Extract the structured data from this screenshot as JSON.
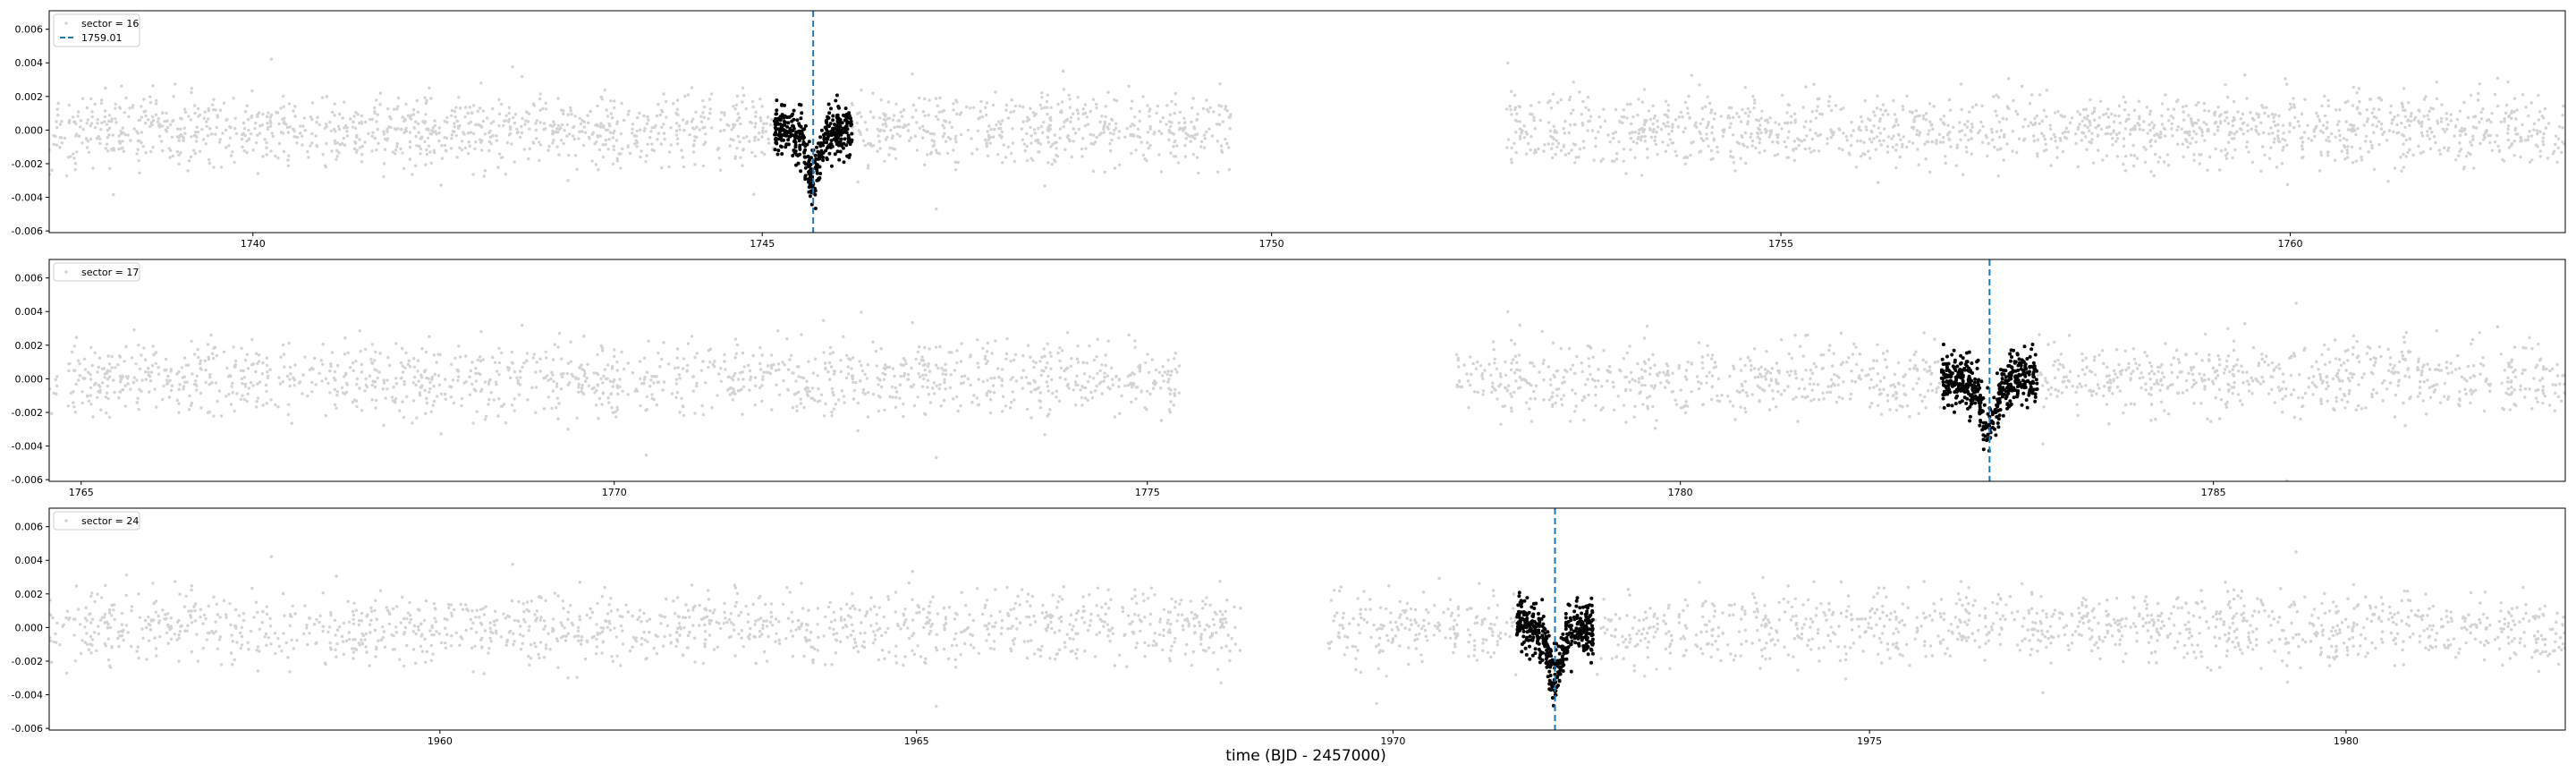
{
  "chart_data": [
    {
      "type": "scatter",
      "sector_label": "sector = 16",
      "transit_label": "1759.01",
      "show_transit_legend": true,
      "transit_x": 1745.5,
      "xlim": [
        1738.0,
        1762.7
      ],
      "ylim": [
        -0.0061,
        0.0071
      ],
      "xticks": [
        1740,
        1745,
        1750,
        1755,
        1760
      ],
      "yticks": [
        "0.006",
        "0.004",
        "0.002",
        "0.000",
        "-0.002",
        "-0.004",
        "-0.006"
      ],
      "gaps": [
        [
          1749.6,
          1752.3
        ]
      ],
      "transits": [
        {
          "start": 1745.12,
          "end": 1745.88,
          "dip_center": 1745.5,
          "dip_half_width": 0.12,
          "dip_depth": 0.0027
        }
      ]
    },
    {
      "type": "scatter",
      "sector_label": "sector = 17",
      "transit_label": "1759.01",
      "show_transit_legend": false,
      "transit_x": 1782.9,
      "xlim": [
        1764.7,
        1788.3
      ],
      "ylim": [
        -0.0061,
        0.0071
      ],
      "xticks": [
        1765,
        1770,
        1775,
        1780,
        1785
      ],
      "yticks": [
        "0.006",
        "0.004",
        "0.002",
        "0.000",
        "-0.002",
        "-0.004",
        "-0.006"
      ],
      "gaps": [
        [
          1775.3,
          1777.9
        ]
      ],
      "transits": [
        {
          "start": 1782.45,
          "end": 1783.35,
          "dip_center": 1782.9,
          "dip_half_width": 0.12,
          "dip_depth": 0.003
        }
      ]
    },
    {
      "type": "scatter",
      "sector_label": "sector = 24",
      "transit_label": "1759.01",
      "show_transit_legend": false,
      "transit_x": 1971.7,
      "xlim": [
        1955.9,
        1982.3
      ],
      "ylim": [
        -0.0061,
        0.0071
      ],
      "xticks": [
        1960,
        1965,
        1970,
        1975,
        1980
      ],
      "yticks": [
        "0.006",
        "0.004",
        "0.002",
        "0.000",
        "-0.002",
        "-0.004",
        "-0.006"
      ],
      "gaps": [
        [
          1968.4,
          1969.3
        ]
      ],
      "transits": [
        {
          "start": 1971.3,
          "end": 1972.1,
          "dip_center": 1971.7,
          "dip_half_width": 0.12,
          "dip_depth": 0.0029
        }
      ]
    }
  ],
  "xlabel": "time (BJD - 2457000)",
  "colors": {
    "background_points": "#d3d3d3",
    "transit_points": "#000000",
    "transit_line": "#1f77b4",
    "axes": "#000000"
  }
}
